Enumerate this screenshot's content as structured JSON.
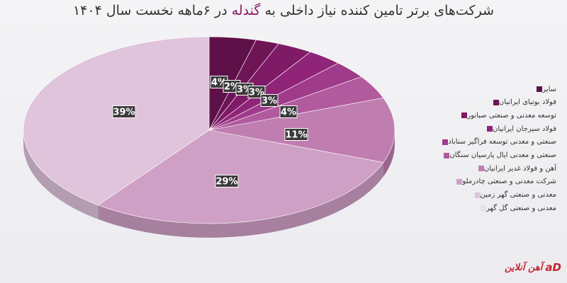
{
  "title": {
    "pre": "شرکت‌های برتر تامین کننده نیاز داخلی به ",
    "highlight": "گندله",
    "post": " در ۶ماهه نخست سال ۱۴۰۴"
  },
  "brand": {
    "name": "آهن آنلاین",
    "logo": "aD"
  },
  "chart_data": {
    "type": "pie",
    "title": "شرکت‌های برتر تامین کننده نیاز داخلی به گندله در ۶ماهه نخست سال ۱۴۰۴",
    "legend_position": "right",
    "series": [
      {
        "name": "سایر",
        "value": 4,
        "label": "4%",
        "color": "#5e1148"
      },
      {
        "name": "فولاد بوتیای ایرانیان",
        "value": 2,
        "label": "2%",
        "color": "#6e1556"
      },
      {
        "name": "توسعه معدنی و صنعتی صبانور",
        "value": 3,
        "label": "3%",
        "color": "#7e1a66"
      },
      {
        "name": "فولاد سیرجان ایرانیان",
        "value": 3,
        "label": "3%",
        "color": "#8f2478"
      },
      {
        "name": "صنعتی و معدنی توسعه فراگیر سناباد",
        "value": 3,
        "label": "3%",
        "color": "#a03a8a"
      },
      {
        "name": "صنعتی و معدنی اپال پارسیان سنگان",
        "value": 4,
        "label": "4%",
        "color": "#b25a9e"
      },
      {
        "name": "آهن و فولاد غدیر ایرانیان",
        "value": 11,
        "label": "11%",
        "color": "#c07eb0"
      },
      {
        "name": "شرکت معدنی و صنعتی چادرملو",
        "value": 29,
        "label": "29%",
        "color": "#cfa0c6"
      },
      {
        "name": "معدنی و صنعتی گهر زمین",
        "value": 39,
        "label": "39%",
        "color": "#e0c4dc"
      },
      {
        "name": "معدنی و صنعتی گل گهر",
        "value": 0,
        "label": "",
        "color": "#efdcec"
      }
    ]
  }
}
